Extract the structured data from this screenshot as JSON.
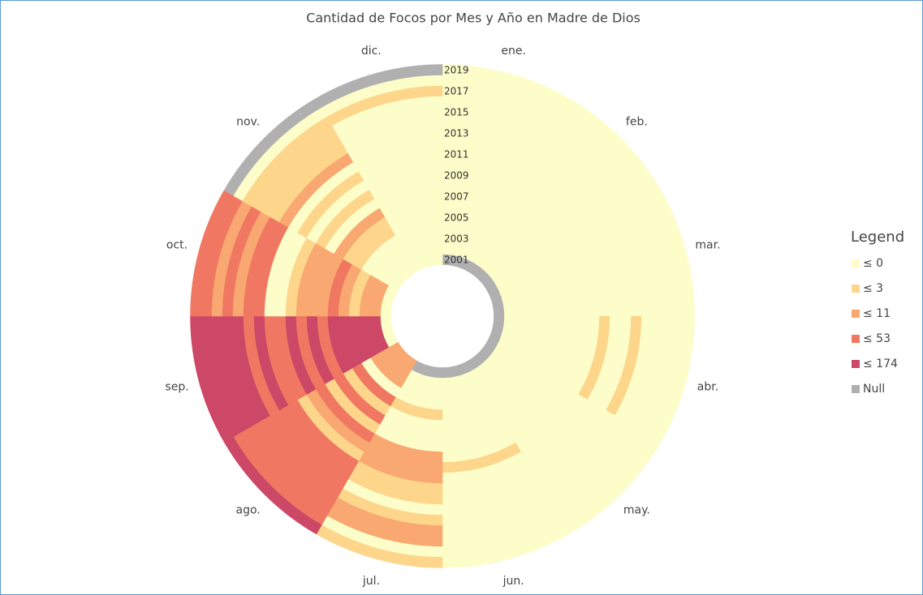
{
  "chart_data": {
    "type": "radial-heatmap",
    "title": "Cantidad de Focos por Mes y Año en  Madre de Dios",
    "categories": [
      "ene.",
      "feb.",
      "mar.",
      "abr.",
      "may.",
      "jun.",
      "jul.",
      "ago.",
      "sep.",
      "oct.",
      "nov.",
      "dic."
    ],
    "rings": [
      "2001",
      null,
      "2003",
      null,
      "2005",
      null,
      "2007",
      null,
      "2009",
      null,
      "2011",
      null,
      "2013",
      null,
      "2015",
      null,
      "2017",
      null,
      "2019"
    ],
    "values": [
      [
        null,
        null,
        null,
        null,
        null,
        null,
        null,
        11,
        0,
        0,
        0,
        0
      ],
      [
        0,
        0,
        0,
        0,
        0,
        0,
        0,
        11,
        174,
        11,
        0,
        0
      ],
      [
        0,
        0,
        0,
        0,
        0,
        0,
        0,
        11,
        174,
        11,
        0,
        0
      ],
      [
        0,
        0,
        0,
        0,
        0,
        0,
        0,
        0,
        174,
        3,
        0,
        0
      ],
      [
        0,
        0,
        0,
        0,
        0,
        0,
        3,
        53,
        174,
        11,
        3,
        0
      ],
      [
        0,
        0,
        0,
        0,
        0,
        0,
        0,
        3,
        174,
        53,
        3,
        0
      ],
      [
        0,
        0,
        0,
        0,
        0,
        0,
        0,
        53,
        53,
        11,
        11,
        0
      ],
      [
        0,
        0,
        0,
        0,
        0,
        0,
        0,
        3,
        174,
        11,
        0,
        0
      ],
      [
        0,
        0,
        0,
        0,
        0,
        0,
        11,
        53,
        53,
        11,
        3,
        0
      ],
      [
        0,
        0,
        0,
        0,
        0,
        3,
        11,
        11,
        174,
        3,
        0,
        0
      ],
      [
        0,
        0,
        0,
        3,
        0,
        0,
        11,
        3,
        53,
        0,
        3,
        0
      ],
      [
        0,
        0,
        0,
        0,
        0,
        0,
        3,
        53,
        53,
        0,
        0,
        0
      ],
      [
        0,
        0,
        0,
        0,
        0,
        0,
        3,
        53,
        174,
        53,
        11,
        0
      ],
      [
        0,
        0,
        0,
        3,
        0,
        0,
        0,
        53,
        53,
        53,
        3,
        0
      ],
      [
        0,
        0,
        0,
        0,
        0,
        0,
        3,
        53,
        174,
        11,
        3,
        0
      ],
      [
        0,
        0,
        0,
        0,
        0,
        0,
        11,
        53,
        174,
        53,
        3,
        0
      ],
      [
        0,
        0,
        0,
        0,
        0,
        0,
        11,
        53,
        174,
        11,
        3,
        3
      ],
      [
        0,
        0,
        0,
        0,
        0,
        0,
        0,
        53,
        174,
        53,
        0,
        0
      ],
      [
        0,
        0,
        0,
        0,
        0,
        0,
        3,
        174,
        174,
        53,
        null,
        null
      ]
    ],
    "legend": {
      "title": "Legend",
      "items": [
        {
          "label": "≤ 0",
          "max": 0,
          "color": "#fdfdc9"
        },
        {
          "label": "≤ 3",
          "max": 3,
          "color": "#fdd68c"
        },
        {
          "label": "≤ 11",
          "max": 11,
          "color": "#f8a870"
        },
        {
          "label": "≤ 53",
          "max": 53,
          "color": "#f07862"
        },
        {
          "label": "≤ 174",
          "max": 174,
          "color": "#cc4866"
        },
        {
          "label": "Null",
          "color": "#b0b0b0"
        }
      ]
    }
  }
}
